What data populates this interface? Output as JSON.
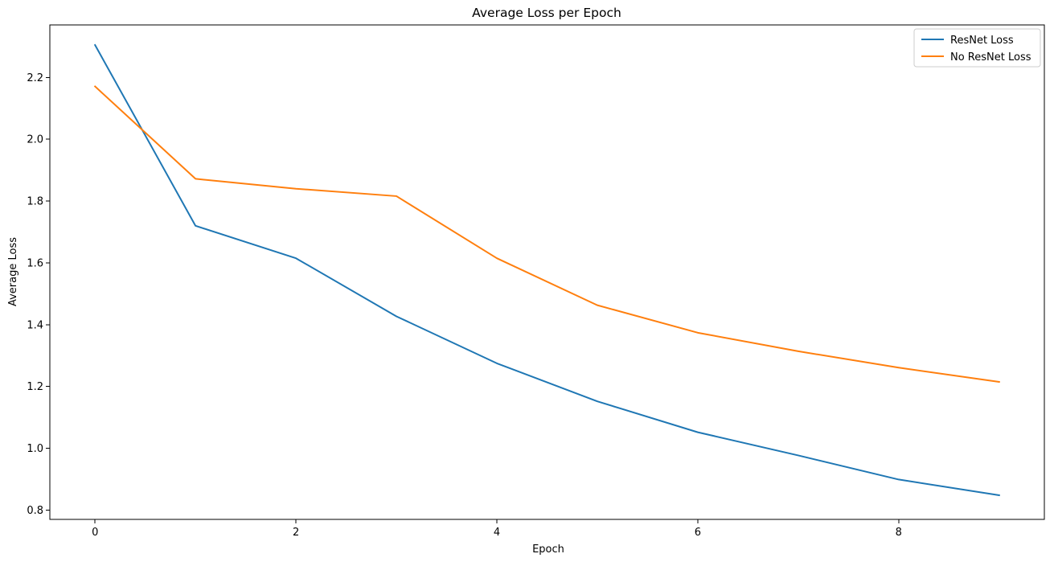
{
  "chart_data": {
    "type": "line",
    "title": "Average Loss per Epoch",
    "xlabel": "Epoch",
    "ylabel": "Average Loss",
    "x": [
      0,
      1,
      2,
      3,
      4,
      5,
      6,
      7,
      8,
      9
    ],
    "xlim": [
      -0.45,
      9.45
    ],
    "ylim": [
      0.77,
      2.37
    ],
    "x_ticks": [
      0,
      2,
      4,
      6,
      8
    ],
    "y_ticks": [
      0.8,
      1.0,
      1.2,
      1.4,
      1.6,
      1.8,
      2.0,
      2.2
    ],
    "x_tick_labels": [
      "0",
      "2",
      "4",
      "6",
      "8"
    ],
    "y_tick_labels": [
      "0.8",
      "1.0",
      "1.2",
      "1.4",
      "1.6",
      "1.8",
      "2.0",
      "2.2"
    ],
    "grid": false,
    "legend_position": "top-right",
    "series": [
      {
        "name": "ResNet Loss",
        "color": "#1f77b4",
        "values": [
          2.305,
          1.72,
          1.615,
          1.427,
          1.275,
          1.152,
          1.052,
          0.977,
          0.899,
          0.848
        ]
      },
      {
        "name": "No ResNet Loss",
        "color": "#ff7f0e",
        "values": [
          2.171,
          1.872,
          1.84,
          1.816,
          1.615,
          1.463,
          1.374,
          1.314,
          1.261,
          1.215
        ]
      }
    ]
  }
}
